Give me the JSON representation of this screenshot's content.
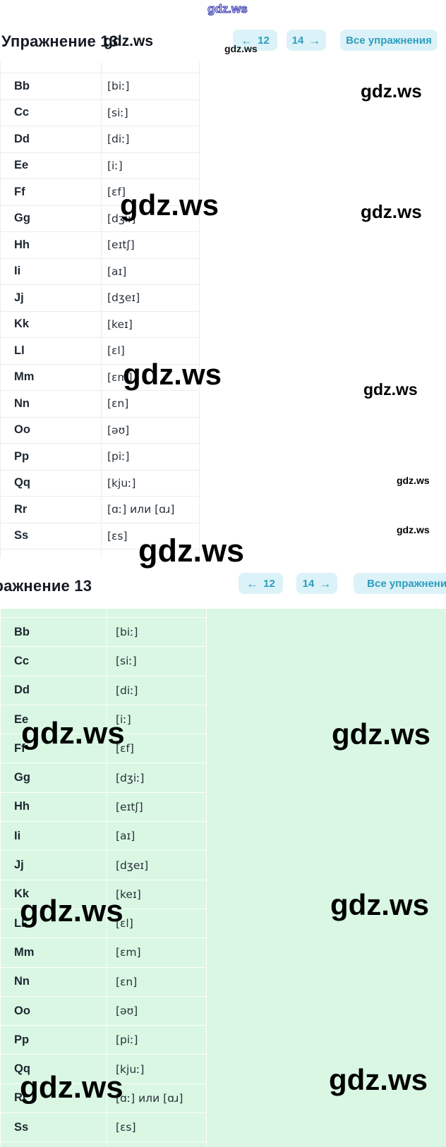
{
  "watermark": {
    "text": "gdz.ws"
  },
  "header": {
    "title": "Упражнение 13",
    "nav": {
      "prev_arrow": "←",
      "prev_number": "12",
      "next_number": "14",
      "next_arrow": "→",
      "all_label": "Все упражнения"
    }
  },
  "colors": {
    "button_bg": "#dbf2f8",
    "button_text": "#2e9dbd",
    "green_background": "#d9f7e3",
    "title_text": "#141b24",
    "watermark_text": "#000000",
    "watermark_outline": "#3c3cb4"
  },
  "table": {
    "rows": [
      {
        "letter": "Bb",
        "transcription": "[biː]"
      },
      {
        "letter": "Cc",
        "transcription": "[siː]"
      },
      {
        "letter": "Dd",
        "transcription": "[diː]"
      },
      {
        "letter": "Ee",
        "transcription": "[iː]"
      },
      {
        "letter": "Ff",
        "transcription": "[ɛf]"
      },
      {
        "letter": "Gg",
        "transcription": "[dʒiː]"
      },
      {
        "letter": "Hh",
        "transcription": "[eɪtʃ]"
      },
      {
        "letter": "Ii",
        "transcription": "[aɪ]"
      },
      {
        "letter": "Jj",
        "transcription": "[dʒeɪ]"
      },
      {
        "letter": "Kk",
        "transcription": "[keɪ]"
      },
      {
        "letter": "Ll",
        "transcription": "[ɛl]"
      },
      {
        "letter": "Mm",
        "transcription": "[ɛm]"
      },
      {
        "letter": "Nn",
        "transcription": "[ɛn]"
      },
      {
        "letter": "Oo",
        "transcription": "[əʊ]"
      },
      {
        "letter": "Pp",
        "transcription": "[piː]"
      },
      {
        "letter": "Qq",
        "transcription": "[kjuː]"
      },
      {
        "letter": "Rr",
        "transcription": "[ɑː] или [ɑɹ]"
      },
      {
        "letter": "Ss",
        "transcription": "[ɛs]"
      }
    ]
  }
}
